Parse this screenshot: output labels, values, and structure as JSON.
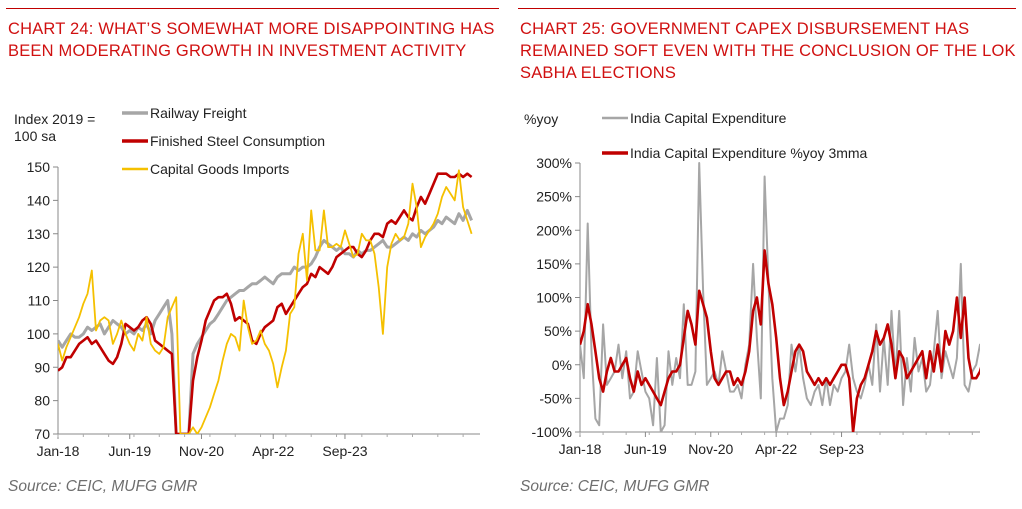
{
  "charts": [
    {
      "title": "CHART 24: WHAT’S SOMEWHAT MORE DISAPPOINTING HAS BEEN MODERATING GROWTH IN INVESTMENT ACTIVITY",
      "source": "Source: CEIC, MUFG GMR",
      "colors": {
        "Railway Freight": "#a6a6a6",
        "Finished Steel Consumption": "#c00000",
        "Capital Goods Imports": "#f5c000"
      }
    },
    {
      "title": "CHART 25: GOVERNMENT CAPEX DISBURSEMENT HAS REMAINED SOFT EVEN WITH THE CONCLUSION OF THE LOK SABHA ELECTIONS",
      "source": "Source: CEIC, MUFG GMR",
      "colors": {
        "India Capital Expenditure": "#a6a6a6",
        "India Capital Expenditure %yoy 3mma": "#c00000"
      }
    }
  ],
  "chart_data": [
    {
      "type": "line",
      "ylabel": "Index 2019 = 100 sa",
      "ylim": [
        70,
        150
      ],
      "yticks": [
        70,
        80,
        90,
        100,
        110,
        120,
        130,
        140,
        150
      ],
      "x_start": "Jan-18",
      "x_period": "monthly",
      "xticks": [
        "Jan-18",
        "Jun-19",
        "Nov-20",
        "Apr-22",
        "Sep-23"
      ],
      "grid": false,
      "legend": "top-left",
      "series": [
        {
          "name": "Railway Freight",
          "values": [
            98,
            96,
            98,
            100,
            99,
            99,
            100,
            102,
            101,
            102,
            103,
            100,
            102,
            104,
            103,
            102,
            100,
            101,
            100,
            102,
            101,
            103,
            100,
            104,
            106,
            108,
            110,
            100,
            70,
            70,
            70,
            70,
            94,
            97,
            99,
            101,
            103,
            104,
            106,
            108,
            110,
            111,
            112,
            113,
            113,
            114,
            115,
            115,
            116,
            117,
            116,
            115,
            117,
            118,
            118,
            118,
            120,
            119,
            120,
            120,
            121,
            123,
            126,
            128,
            127,
            126,
            125,
            126,
            124,
            124,
            123,
            125,
            124,
            125,
            125,
            126,
            127,
            128,
            126,
            126,
            127,
            128,
            129,
            128,
            130,
            129,
            131,
            130,
            131,
            132,
            134,
            133,
            135,
            134,
            133,
            136,
            134,
            137,
            134
          ]
        },
        {
          "name": "Finished Steel Consumption",
          "values": [
            89,
            90,
            93,
            93,
            95,
            97,
            98,
            99,
            97,
            98,
            96,
            94,
            92,
            91,
            93,
            97,
            103,
            102,
            101,
            102,
            104,
            105,
            103,
            98,
            97,
            96,
            95,
            94,
            70,
            70,
            70,
            70,
            86,
            93,
            98,
            104,
            107,
            110,
            111,
            111,
            112,
            109,
            104,
            105,
            104,
            103,
            98,
            97,
            100,
            102,
            103,
            104,
            108,
            109,
            106,
            108,
            110,
            112,
            114,
            115,
            118,
            117,
            120,
            119,
            118,
            120,
            123,
            124,
            125,
            126,
            126,
            124,
            123,
            125,
            128,
            130,
            130,
            129,
            133,
            134,
            133,
            135,
            137,
            135,
            134,
            138,
            141,
            139,
            142,
            145,
            148,
            148,
            148,
            147,
            147,
            148,
            147,
            148,
            147
          ]
        },
        {
          "name": "Capital Goods Imports",
          "values": [
            97,
            92,
            96,
            99,
            102,
            105,
            109,
            112,
            119,
            101,
            104,
            105,
            104,
            97,
            100,
            104,
            100,
            97,
            95,
            100,
            98,
            105,
            97,
            95,
            94,
            96,
            105,
            108,
            111,
            70,
            70,
            70,
            72,
            70,
            72,
            75,
            78,
            82,
            86,
            92,
            97,
            100,
            99,
            95,
            110,
            102,
            97,
            98,
            101,
            97,
            95,
            91,
            84,
            90,
            95,
            106,
            108,
            124,
            130,
            116,
            137,
            125,
            125,
            137,
            126,
            126,
            127,
            126,
            131,
            127,
            123,
            124,
            130,
            128,
            128,
            124,
            114,
            100,
            120,
            127,
            130,
            128,
            129,
            133,
            145,
            138,
            126,
            129,
            131,
            133,
            136,
            141,
            144,
            142,
            140,
            149,
            138,
            134,
            130
          ]
        }
      ]
    },
    {
      "type": "line",
      "ylabel": "%yoy",
      "ylim": [
        -100,
        300
      ],
      "yticks": [
        "-100%",
        "-50%",
        "0%",
        "50%",
        "100%",
        "150%",
        "200%",
        "250%",
        "300%"
      ],
      "x_start": "Jan-18",
      "x_period": "monthly",
      "xticks": [
        "Jan-18",
        "Jun-19",
        "Nov-20",
        "Apr-22",
        "Sep-23"
      ],
      "grid": false,
      "legend": "top-left",
      "series": [
        {
          "name": "India Capital Expenditure",
          "values": [
            30,
            -20,
            210,
            20,
            -80,
            -90,
            60,
            -30,
            -20,
            -10,
            30,
            -20,
            20,
            -50,
            -40,
            20,
            -10,
            -40,
            -50,
            -90,
            10,
            -100,
            -90,
            20,
            -30,
            10,
            -20,
            90,
            -30,
            -30,
            -10,
            300,
            110,
            -30,
            -20,
            -10,
            -30,
            20,
            -10,
            -40,
            -40,
            -30,
            -50,
            0,
            30,
            150,
            40,
            -50,
            280,
            120,
            -20,
            -100,
            -80,
            -80,
            -60,
            30,
            -10,
            30,
            -20,
            -50,
            -60,
            -40,
            -30,
            -60,
            -20,
            -60,
            -30,
            -40,
            -20,
            -10,
            30,
            -20,
            -40,
            -50,
            -30,
            0,
            -30,
            60,
            -40,
            40,
            -30,
            80,
            -20,
            80,
            -60,
            10,
            -40,
            40,
            -10,
            10,
            -40,
            -30,
            20,
            80,
            -20,
            20,
            0,
            -20,
            10,
            150,
            -30,
            -40,
            -10,
            0,
            30,
            10,
            -100
          ]
        },
        {
          "name": "India Capital Expenditure %yoy 3mma",
          "values": [
            30,
            50,
            90,
            60,
            20,
            -20,
            -40,
            -10,
            10,
            -10,
            -10,
            0,
            10,
            -20,
            -40,
            -10,
            -30,
            -20,
            -30,
            -40,
            -50,
            -60,
            -40,
            -20,
            -10,
            -10,
            0,
            40,
            80,
            60,
            30,
            110,
            90,
            70,
            20,
            -20,
            -30,
            -20,
            -10,
            -10,
            -30,
            -20,
            -30,
            -10,
            20,
            80,
            100,
            60,
            170,
            120,
            90,
            40,
            -20,
            -60,
            -40,
            -10,
            20,
            30,
            20,
            -10,
            -20,
            -30,
            -20,
            -30,
            -20,
            -30,
            -20,
            -10,
            0,
            0,
            -20,
            -100,
            -50,
            -30,
            -20,
            0,
            20,
            50,
            30,
            40,
            60,
            30,
            -20,
            20,
            10,
            -20,
            -10,
            0,
            10,
            20,
            -20,
            20,
            -10,
            30,
            -10,
            50,
            30,
            50,
            100,
            40,
            100,
            10,
            -20,
            -20,
            -10,
            10,
            -10
          ]
        }
      ]
    }
  ]
}
